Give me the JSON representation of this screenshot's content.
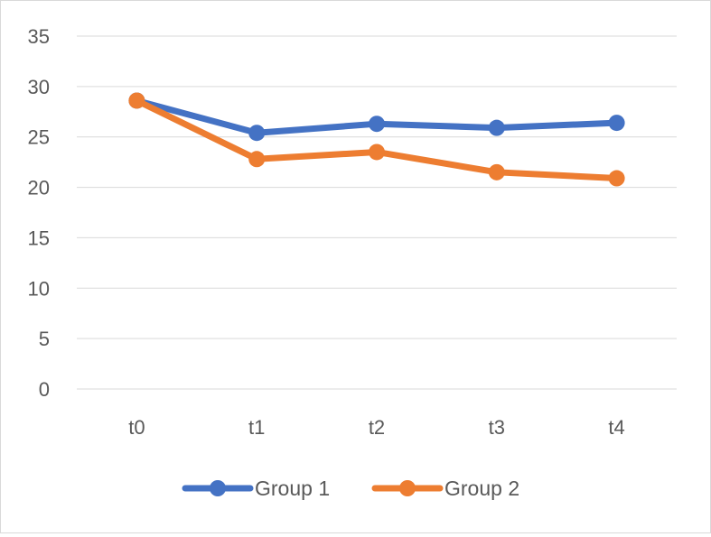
{
  "chart_data": {
    "type": "line",
    "title": "",
    "xlabel": "",
    "ylabel": "",
    "categories": [
      "t0",
      "t1",
      "t2",
      "t3",
      "t4"
    ],
    "yticks": [
      0,
      5,
      10,
      15,
      20,
      25,
      30,
      35
    ],
    "ylim": [
      0,
      35
    ],
    "grid": true,
    "legend_position": "bottom",
    "series": [
      {
        "name": "Group 1",
        "values": [
          28.6,
          25.4,
          26.3,
          25.9,
          26.4
        ],
        "color": "#4472c4"
      },
      {
        "name": "Group 2",
        "values": [
          28.6,
          22.8,
          23.5,
          21.5,
          20.9
        ],
        "color": "#ed7d31"
      }
    ]
  }
}
